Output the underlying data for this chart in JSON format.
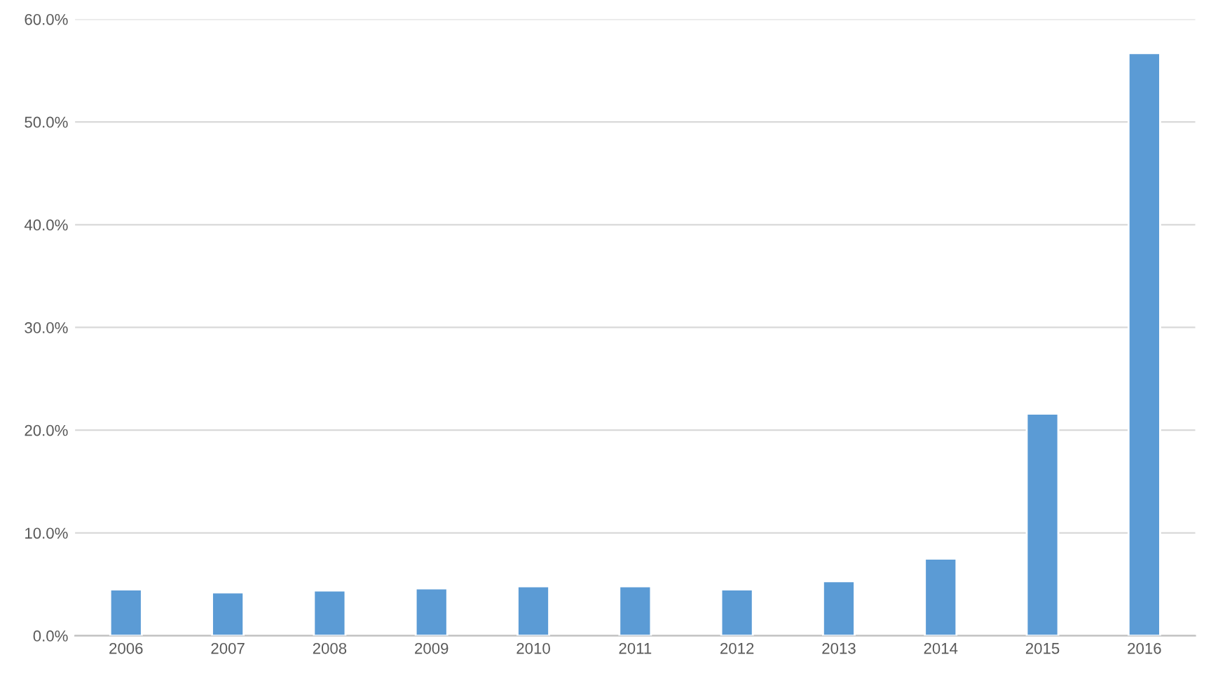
{
  "chart_data": {
    "type": "bar",
    "categories": [
      "2006",
      "2007",
      "2008",
      "2009",
      "2010",
      "2011",
      "2012",
      "2013",
      "2014",
      "2015",
      "2016"
    ],
    "values": [
      4.5,
      4.2,
      4.4,
      4.6,
      4.8,
      4.8,
      4.5,
      5.3,
      7.5,
      21.6,
      56.7
    ],
    "color": "#5b9bd5",
    "ylim": [
      0,
      60
    ],
    "yticks": [
      {
        "value": 0,
        "label": "0.0%"
      },
      {
        "value": 10,
        "label": "10.0%"
      },
      {
        "value": 20,
        "label": "20.0%"
      },
      {
        "value": 30,
        "label": "30.0%"
      },
      {
        "value": 40,
        "label": "40.0%"
      },
      {
        "value": 50,
        "label": "50.0%"
      },
      {
        "value": 60,
        "label": "60.0%"
      }
    ],
    "grid": "y"
  }
}
